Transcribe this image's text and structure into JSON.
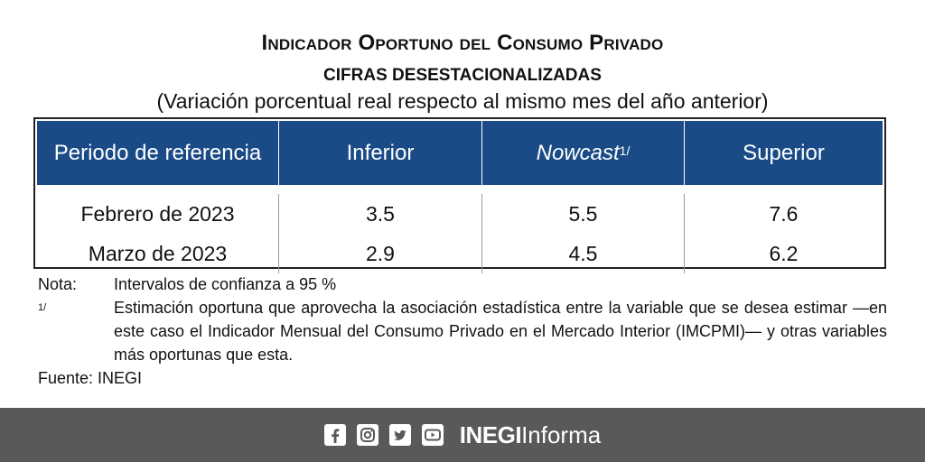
{
  "header": {
    "title": "Indicador Oportuno del Consumo Privado",
    "subtitle": "CIFRAS DESESTACIONALIZADAS",
    "caption": "(Variación porcentual real respecto al mismo mes del año anterior)"
  },
  "table": {
    "columns": [
      "Periodo de referencia",
      "Inferior",
      "Nowcast",
      "Superior"
    ],
    "nowcast_footnote": "1/",
    "rows": [
      [
        "Febrero de 2023",
        "3.5",
        "5.5",
        "7.6"
      ],
      [
        "Marzo de 2023",
        "2.9",
        "4.5",
        "6.2"
      ]
    ],
    "header_color": "#1a4b87"
  },
  "notes": {
    "nota_label": "Nota:",
    "nota_text": "Intervalos de confianza a 95 %",
    "footnote_label": "1/",
    "footnote_text": "Estimación oportuna que aprovecha la asociación estadística entre la variable que se desea estimar —en este caso el Indicador Mensual del Consumo Privado en el Mercado Interior (IMCPMI)— y otras variables más oportunas que esta.",
    "source": "Fuente: INEGI"
  },
  "footer": {
    "icons": [
      "facebook-icon",
      "instagram-icon",
      "twitter-icon",
      "youtube-icon"
    ],
    "brand_bold": "INEGI",
    "brand_light": "Informa",
    "background": "#58595b"
  }
}
